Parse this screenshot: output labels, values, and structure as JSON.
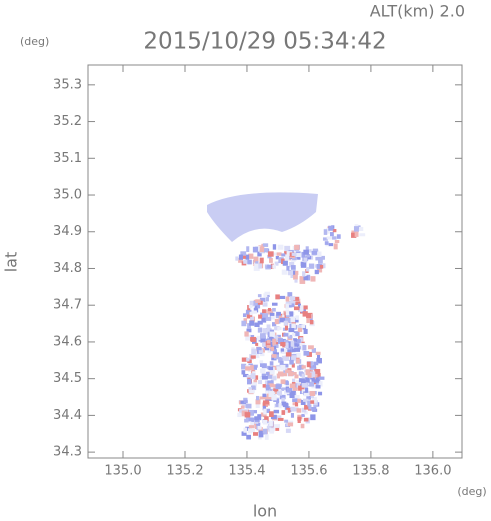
{
  "chart_data": {
    "type": "map",
    "title": "2015/10/29 05:34:42",
    "altitude_label": "ALT(km) 2.0",
    "y_unit": "(deg)",
    "x_unit": "(deg)",
    "xlabel": "lon",
    "ylabel": "lat",
    "xlim": [
      134.887,
      136.094
    ],
    "ylim": [
      34.284,
      35.354
    ],
    "xticks": [
      {
        "value": 135,
        "label": "135.0"
      },
      135.2,
      135.4,
      135.6,
      135.8,
      {
        "value": 136,
        "label": "136.0"
      }
    ],
    "yticks": [
      34.3,
      34.4,
      34.5,
      34.6,
      34.7,
      34.8,
      34.9,
      {
        "value": 35,
        "label": "35.0"
      },
      35.1,
      35.2,
      35.3
    ]
  }
}
